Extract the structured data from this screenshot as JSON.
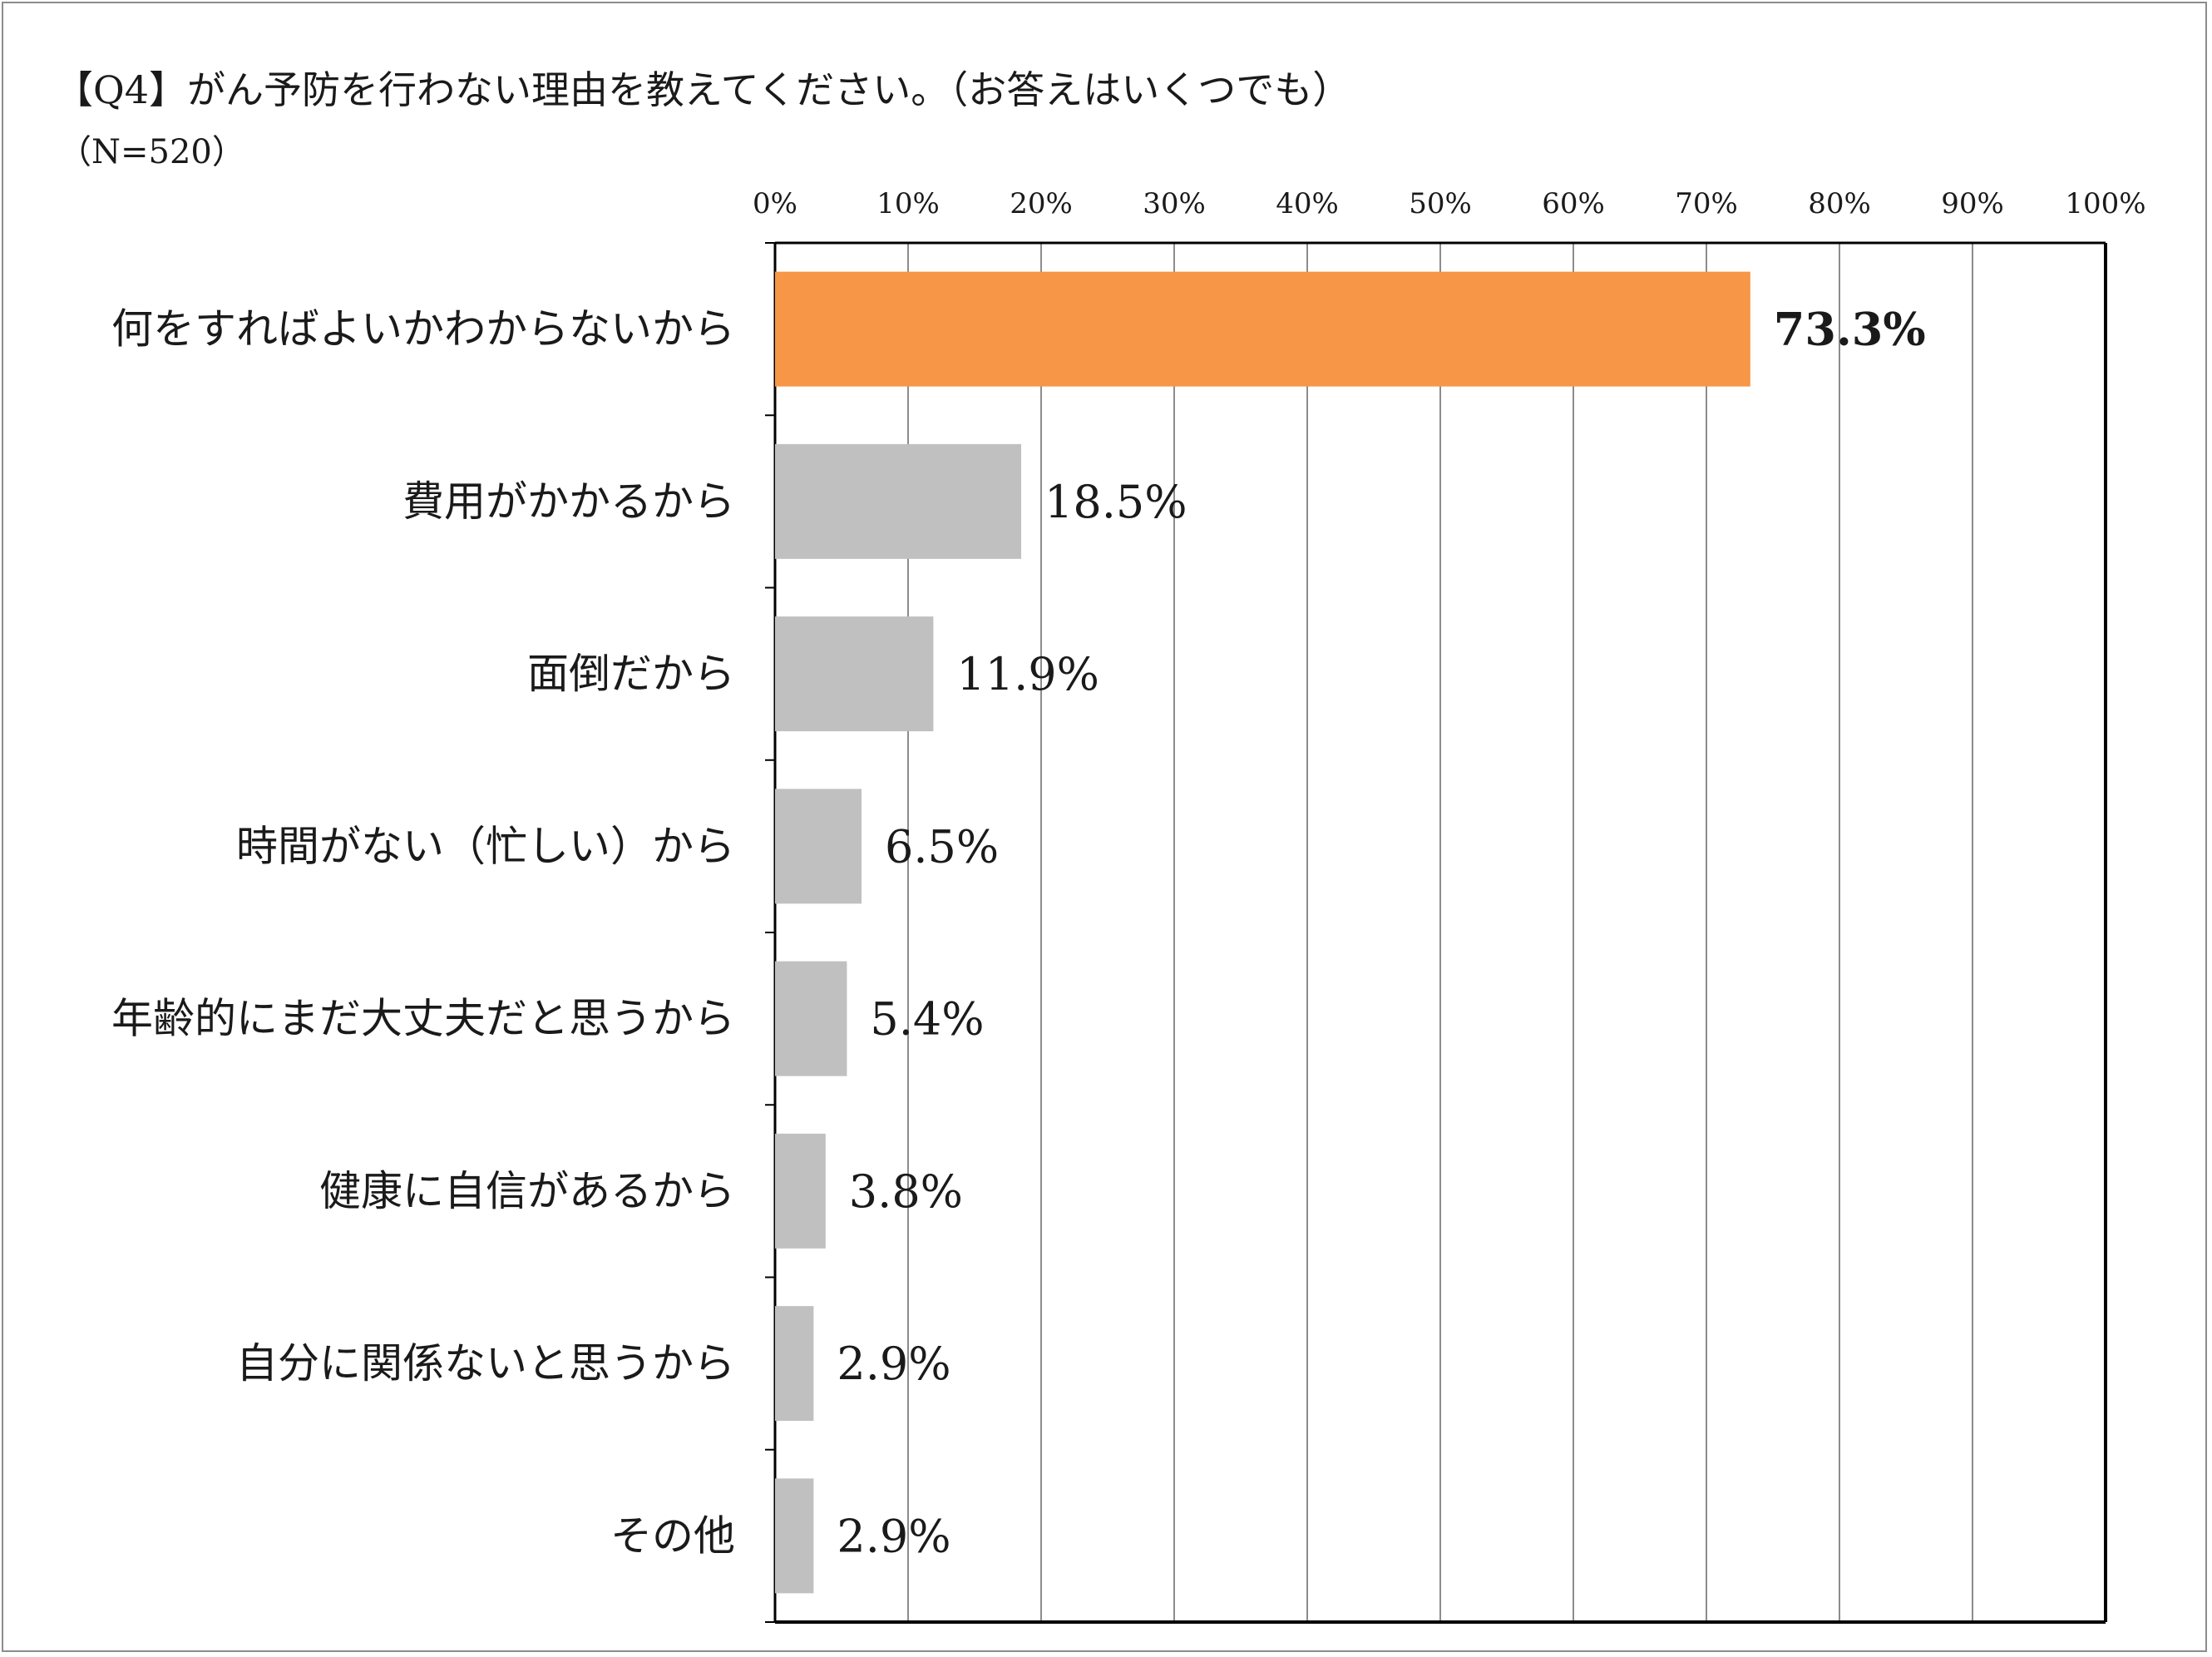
{
  "title": "【Q4】がん予防を行わない理由を教えてください。（お答えはいくつでも）",
  "subtitle": "（N=520）",
  "chart_data": {
    "type": "bar",
    "orientation": "horizontal",
    "title": "【Q4】がん予防を行わない理由を教えてください。（お答えはいくつでも）",
    "subtitle": "（N=520）",
    "xlabel": "",
    "ylabel": "",
    "xlim": [
      0,
      100
    ],
    "ticks": [
      0,
      10,
      20,
      30,
      40,
      50,
      60,
      70,
      80,
      90,
      100
    ],
    "tick_labels": [
      "0%",
      "10%",
      "20%",
      "30%",
      "40%",
      "50%",
      "60%",
      "70%",
      "80%",
      "90%",
      "100%"
    ],
    "grid": true,
    "categories": [
      "何をすればよいかわからないから",
      "費用がかかるから",
      "面倒だから",
      "時間がない（忙しい）から",
      "年齢的にまだ大丈夫だと思うから",
      "健康に自信があるから",
      "自分に関係ないと思うから",
      "その他"
    ],
    "values": [
      73.3,
      18.5,
      11.9,
      6.5,
      5.4,
      3.8,
      2.9,
      2.9
    ],
    "value_labels": [
      "73.3%",
      "18.5%",
      "11.9%",
      "6.5%",
      "5.4%",
      "3.8%",
      "2.9%",
      "2.9%"
    ],
    "highlight_index": 0,
    "colors": {
      "highlight": "#f79646",
      "default": "#c0c0c0",
      "grid": "#8c8c8c",
      "axis": "#000000"
    }
  }
}
